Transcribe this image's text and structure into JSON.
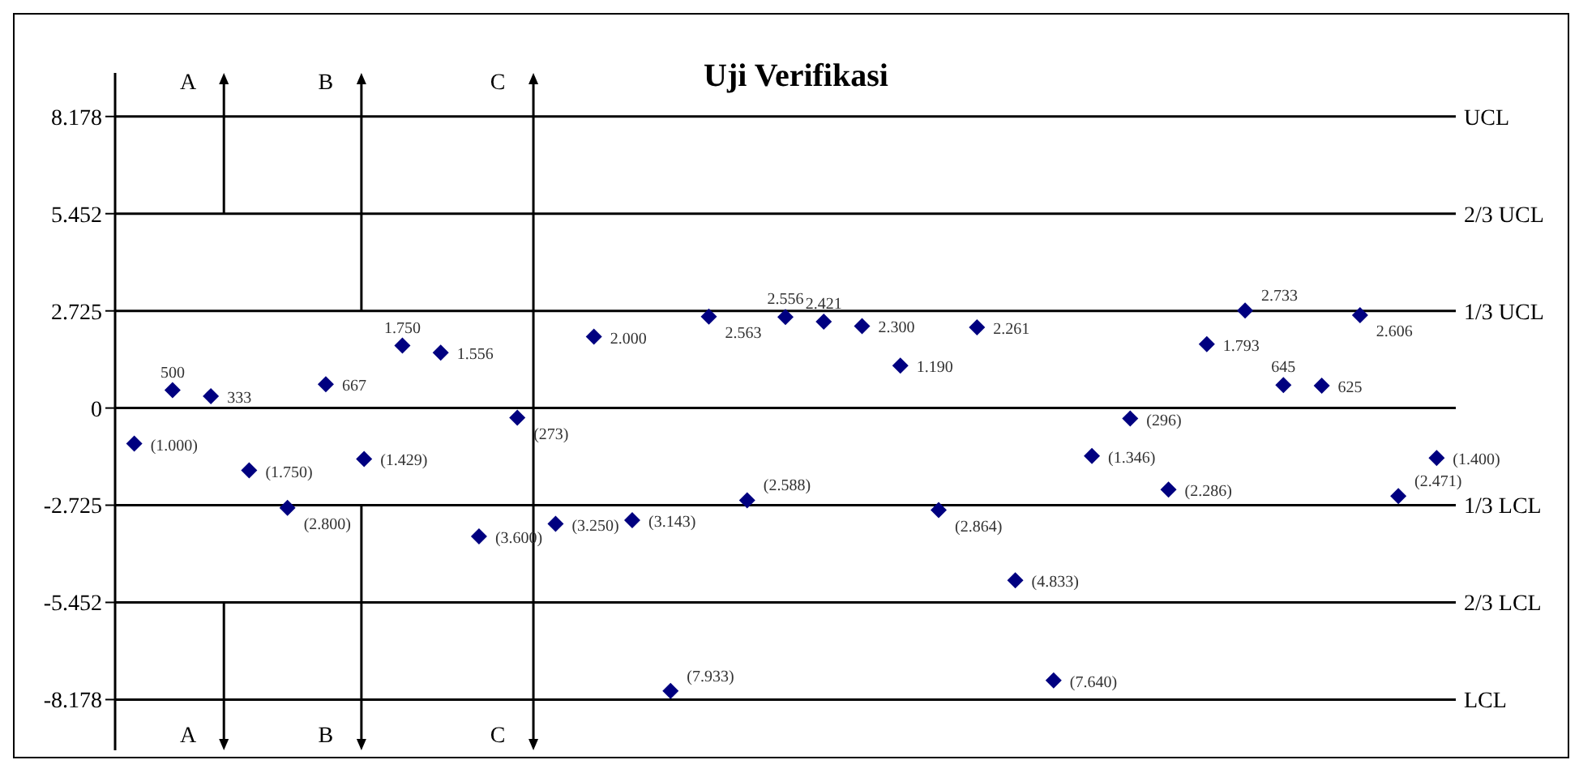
{
  "chart_data": {
    "type": "scatter",
    "title": "Uji Verifikasi",
    "categories": [
      null,
      null,
      null,
      null,
      null,
      null,
      null,
      null,
      null,
      null,
      null,
      null,
      null,
      null,
      null,
      null,
      null,
      null,
      null,
      null,
      null,
      null,
      null,
      null,
      null,
      null,
      null,
      null,
      null,
      null,
      null,
      null,
      null,
      null,
      null
    ],
    "series": [
      {
        "color": "#000080",
        "values": [
          -1000,
          500,
          333,
          -1750,
          -2800,
          667,
          -1429,
          1750,
          1556,
          -3600,
          -273,
          -3250,
          2000,
          -3143,
          -7933,
          2563,
          -2588,
          2556,
          2421,
          2300,
          1190,
          -2864,
          2261,
          -4833,
          -7640,
          -1346,
          -296,
          -2286,
          1793,
          2733,
          645,
          625,
          2606,
          -2471,
          -1400
        ],
        "value_labels": [
          "(1.000)",
          "500",
          "333",
          "(1.750)",
          "(2.800)",
          "667",
          "(1.429)",
          "1.750",
          "1.556",
          "(3.600)",
          "(273)",
          "(3.250)",
          "2.000",
          "(3.143)",
          "(7.933)",
          "2.563",
          "(2.588)",
          "2.556",
          "2.421",
          "2.300",
          "1.190",
          "(2.864)",
          "2.261",
          "(4.833)",
          "(7.640)",
          "(1.346)",
          "(296)",
          "(2.286)",
          "1.793",
          "2.733",
          "645",
          "625",
          "2.606",
          "(2.471)",
          "(1.400)"
        ]
      }
    ],
    "ylim": [
      -9600,
      9400
    ],
    "yticks": [
      {
        "value": 8178,
        "label": "8.178"
      },
      {
        "value": 5452,
        "label": "5.452"
      },
      {
        "value": 2725,
        "label": "2.725"
      },
      0,
      {
        "value": -2725,
        "label": "-2.725"
      },
      {
        "value": -5452,
        "label": "-5.452"
      },
      {
        "value": -8178,
        "label": "-8.178"
      }
    ],
    "tick_labels": "y",
    "marker": "diamond",
    "annotations": [
      "A",
      "B",
      "C"
    ],
    "ref_lines": [
      {
        "axis": "y",
        "value": 8178,
        "label": "UCL"
      },
      {
        "axis": "y",
        "value": 5452,
        "label": "2/3 UCL"
      },
      {
        "axis": "y",
        "value": 2725,
        "label": "1/3 UCL"
      },
      {
        "axis": "y",
        "value": 0,
        "label": null
      },
      {
        "axis": "y",
        "value": -2725,
        "label": "1/3 LCL"
      },
      {
        "axis": "y",
        "value": -5452,
        "label": "2/3 LCL"
      },
      {
        "axis": "y",
        "value": -8178,
        "label": "LCL"
      }
    ]
  }
}
